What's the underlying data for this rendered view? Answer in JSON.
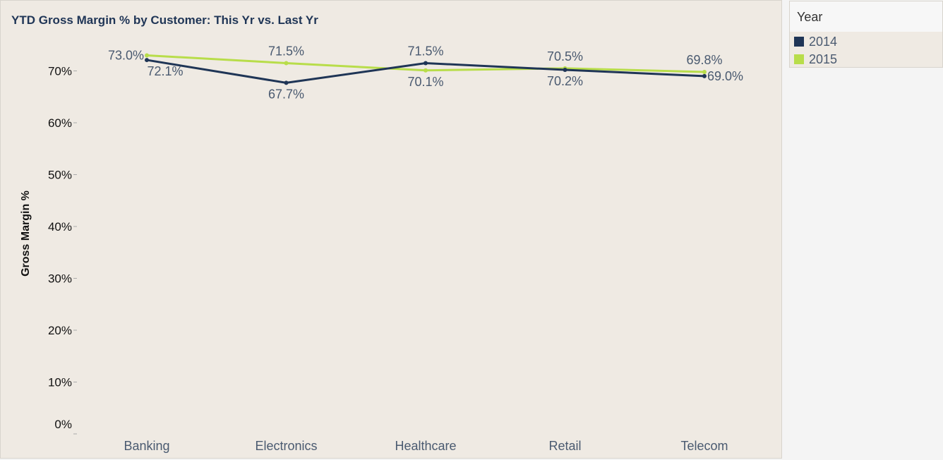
{
  "title": "YTD Gross Margin % by Customer: This Yr vs. Last Yr",
  "legend": {
    "title": "Year",
    "items": [
      {
        "label": "2014",
        "color": "#1f3556"
      },
      {
        "label": "2015",
        "color": "#b8dd4a"
      }
    ]
  },
  "chart_data": {
    "type": "line",
    "title": "YTD Gross Margin % by Customer: This Yr vs. Last Yr",
    "xlabel": "",
    "ylabel": "Gross Margin %",
    "categories": [
      "Banking",
      "Electronics",
      "Healthcare",
      "Retail",
      "Telecom"
    ],
    "yticks": [
      "0%",
      "10%",
      "20%",
      "30%",
      "40%",
      "50%",
      "60%",
      "70%"
    ],
    "ylim": [
      0,
      75
    ],
    "series": [
      {
        "name": "2014",
        "color": "#1f3556",
        "values": [
          72.1,
          67.7,
          71.5,
          70.2,
          69.0
        ],
        "labels": [
          "72.1%",
          "67.7%",
          "71.5%",
          "70.2%",
          "69.0%"
        ]
      },
      {
        "name": "2015",
        "color": "#b8dd4a",
        "values": [
          73.0,
          71.5,
          70.1,
          70.5,
          69.8
        ],
        "labels": [
          "73.0%",
          "71.5%",
          "70.1%",
          "70.5%",
          "69.8%"
        ]
      }
    ],
    "grid": false,
    "legend_position": "right"
  }
}
